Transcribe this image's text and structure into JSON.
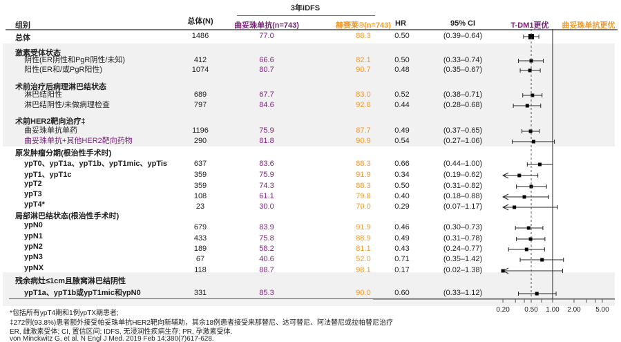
{
  "colors": {
    "trastuzumab": "#7b1f7a",
    "kadcyla": "#f09a2a",
    "band": "#f1f1f1"
  },
  "header": {
    "group": "组别",
    "n": "总体(N)",
    "idfs": "3年iDFS",
    "arm1": "曲妥珠单抗(n=743)",
    "arm2": "赫赛莱®(n=743)",
    "hr": "HR",
    "ci": "95% CI",
    "favors_left": "T-DM1更优",
    "favors_right": "曲妥珠单抗更优"
  },
  "chart_data": {
    "type": "forest",
    "x_scale": "log",
    "xlim": [
      0.2,
      5.0
    ],
    "x_ticks": [
      "0.20",
      "0.50",
      "1.00",
      "2.00",
      "5.00"
    ],
    "reference_line": 1.0,
    "overall_hr_line": 0.5,
    "rows": [
      {
        "kind": "section",
        "label": "总体",
        "n": "1486",
        "arm1": "77.0",
        "arm2": "88.3",
        "hr": "0.50",
        "ci_text": "(0.39–0.64)",
        "ci": [
          0.39,
          0.64
        ]
      },
      {
        "kind": "heading",
        "label": "激素受体状态"
      },
      {
        "kind": "item",
        "label": "阴性(ER阴性和PgR阴性/未知)",
        "n": "412",
        "arm1": "66.6",
        "arm2": "82.1",
        "hr": "0.50",
        "ci_text": "(0.33–0.74)",
        "ci": [
          0.33,
          0.74
        ]
      },
      {
        "kind": "item",
        "label": "阳性(ER和/或PgR阳性)",
        "n": "1074",
        "arm1": "80.7",
        "arm2": "90.7",
        "hr": "0.48",
        "ci_text": "(0.35–0.67)",
        "ci": [
          0.35,
          0.67
        ]
      },
      {
        "kind": "heading",
        "label": "术前治疗后病理淋巴结状态"
      },
      {
        "kind": "item",
        "label": "淋巴结阳性",
        "n": "689",
        "arm1": "67.7",
        "arm2": "83.0",
        "hr": "0.52",
        "ci_text": "(0.38–0.71)",
        "ci": [
          0.38,
          0.71
        ]
      },
      {
        "kind": "item",
        "label": "淋巴结阴性/未做病理检查",
        "n": "797",
        "arm1": "84.6",
        "arm2": "92.8",
        "hr": "0.44",
        "ci_text": "(0.28–0.68)",
        "ci": [
          0.28,
          0.68
        ]
      },
      {
        "kind": "heading",
        "label": "术前HER2靶向治疗‡"
      },
      {
        "kind": "item",
        "label": "曲妥珠单抗单药",
        "n": "1196",
        "arm1": "75.9",
        "arm2": "87.7",
        "hr": "0.49",
        "ci_text": "(0.37–0.65)",
        "ci": [
          0.37,
          0.65
        ]
      },
      {
        "kind": "item",
        "label": "曲妥珠单抗+其他HER2靶向药物",
        "purple": true,
        "n": "290",
        "arm1": "81.8",
        "arm2": "90.9",
        "hr": "0.54",
        "ci_text": "(0.27–1.06)",
        "ci": [
          0.27,
          1.06
        ]
      },
      {
        "kind": "heading",
        "label": "原发肿瘤分期(根治性手术时)"
      },
      {
        "kind": "bolditem",
        "label": "ypT0、ypT1a、ypT1b、ypT1mic、ypTis",
        "n": "637",
        "arm1": "83.6",
        "arm2": "88.3",
        "hr": "0.66",
        "ci_text": "(0.44–1.00)",
        "ci": [
          0.44,
          1.0
        ]
      },
      {
        "kind": "bolditem",
        "label": "ypT1、ypT1c",
        "n": "359",
        "arm1": "75.9",
        "arm2": "91.9",
        "hr": "0.34",
        "ci_text": "(0.19–0.62)",
        "ci": [
          0.19,
          0.62
        ]
      },
      {
        "kind": "bolditem",
        "label": "ypT2",
        "n": "359",
        "arm1": "74.3",
        "arm2": "88.3",
        "hr": "0.50",
        "ci_text": "(0.31–0.82)",
        "ci": [
          0.31,
          0.82
        ]
      },
      {
        "kind": "bolditem",
        "label": "ypT3",
        "n": "108",
        "arm1": "61.1",
        "arm2": "79.8",
        "hr": "0.40",
        "ci_text": "(0.18–0.88)",
        "ci": [
          0.18,
          0.88
        ]
      },
      {
        "kind": "bolditem",
        "label": "ypT4*",
        "n": "23",
        "arm1": "30.0",
        "arm2": "70.0",
        "hr": "0.29",
        "ci_text": "(0.07–1.17)",
        "ci": [
          0.07,
          1.17
        ]
      },
      {
        "kind": "heading",
        "label": "局部淋巴结状态(根治性手术时)"
      },
      {
        "kind": "bolditem",
        "label": "ypN0",
        "n": "679",
        "arm1": "83.9",
        "arm2": "91.9",
        "hr": "0.46",
        "ci_text": "(0.30–0.73)",
        "ci": [
          0.3,
          0.73
        ]
      },
      {
        "kind": "bolditem",
        "label": "ypN1",
        "n": "433",
        "arm1": "75.8",
        "arm2": "88.9",
        "hr": "0.49",
        "ci_text": "(0.31–0.78)",
        "ci": [
          0.31,
          0.78
        ]
      },
      {
        "kind": "bolditem",
        "label": "ypN2",
        "n": "189",
        "arm1": "58.2",
        "arm2": "81.1",
        "hr": "0.43",
        "ci_text": "(0.24–0.77)",
        "ci": [
          0.24,
          0.77
        ]
      },
      {
        "kind": "bolditem",
        "label": "ypN3",
        "n": "67",
        "arm1": "40.6",
        "arm2": "52.0",
        "hr": "0.71",
        "ci_text": "(0.35–1.42)",
        "ci": [
          0.35,
          1.42
        ]
      },
      {
        "kind": "bolditem",
        "label": "ypNX",
        "n": "118",
        "arm1": "88.7",
        "arm2": "98.1",
        "hr": "0.17",
        "ci_text": "(0.02–1.38)",
        "ci": [
          0.02,
          1.38
        ]
      },
      {
        "kind": "heading",
        "label": "残余病灶≤1cm且腋窝淋巴结阴性"
      },
      {
        "kind": "bolditem",
        "label": "ypT1a、ypT1b或ypT1mic和ypN0",
        "n": "331",
        "arm1": "85.3",
        "arm2": "90.0",
        "hr": "0.60",
        "ci_text": "(0.33–1.12)",
        "ci": [
          0.33,
          1.12
        ]
      }
    ]
  },
  "footnotes": [
    "*包括所有ypT4期和1例ypTX期患者;",
    "‡272例(93.8%)患者额外接受帕妥珠单抗HER2靶向新辅助，其余18例患者接受来那替尼、达可替尼、阿法替尼或拉帕替尼治疗",
    "ER, 雌激素受体; CI, 置信区间; IDFS, 无浸润性疾病生存; PR, 孕激素受体.",
    "von Minckwitz G, et al. N Engl J Med. 2019 Feb 14;380(7)617-628."
  ]
}
